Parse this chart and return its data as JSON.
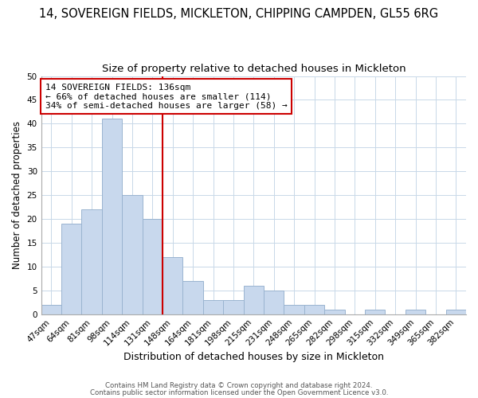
{
  "title": "14, SOVEREIGN FIELDS, MICKLETON, CHIPPING CAMPDEN, GL55 6RG",
  "subtitle": "Size of property relative to detached houses in Mickleton",
  "xlabel": "Distribution of detached houses by size in Mickleton",
  "ylabel": "Number of detached properties",
  "bar_labels": [
    "47sqm",
    "64sqm",
    "81sqm",
    "98sqm",
    "114sqm",
    "131sqm",
    "148sqm",
    "164sqm",
    "181sqm",
    "198sqm",
    "215sqm",
    "231sqm",
    "248sqm",
    "265sqm",
    "282sqm",
    "298sqm",
    "315sqm",
    "332sqm",
    "349sqm",
    "365sqm",
    "382sqm"
  ],
  "bar_values": [
    2,
    19,
    22,
    41,
    25,
    20,
    12,
    7,
    3,
    3,
    6,
    5,
    2,
    2,
    1,
    0,
    1,
    0,
    1,
    0,
    1
  ],
  "bar_color": "#c8d8ed",
  "bar_edge_color": "#9ab4d0",
  "vline_color": "#cc0000",
  "vline_x_index": 5,
  "annotation_text": "14 SOVEREIGN FIELDS: 136sqm\n← 66% of detached houses are smaller (114)\n34% of semi-detached houses are larger (58) →",
  "annotation_box_color": "#ffffff",
  "annotation_box_edge_color": "#cc0000",
  "ylim": [
    0,
    50
  ],
  "yticks": [
    0,
    5,
    10,
    15,
    20,
    25,
    30,
    35,
    40,
    45,
    50
  ],
  "grid_color": "#c8d8e8",
  "title_fontsize": 10.5,
  "subtitle_fontsize": 9.5,
  "xlabel_fontsize": 9,
  "ylabel_fontsize": 8.5,
  "tick_fontsize": 7.5,
  "annotation_fontsize": 8,
  "footnote1": "Contains HM Land Registry data © Crown copyright and database right 2024.",
  "footnote2": "Contains public sector information licensed under the Open Government Licence v3.0.",
  "bg_color": "#ffffff",
  "plot_bg_color": "#ffffff"
}
